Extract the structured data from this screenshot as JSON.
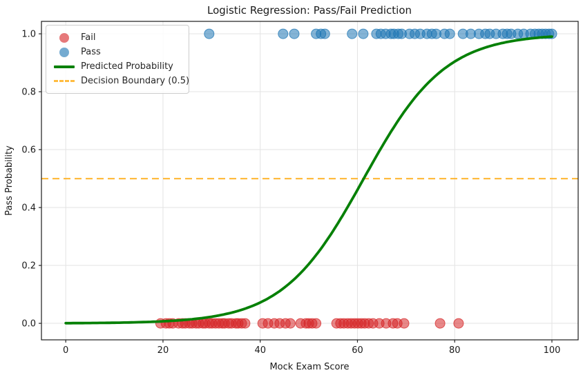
{
  "chart_data": {
    "type": "scatter",
    "title": "Logistic Regression: Pass/Fail Prediction",
    "xlabel": "Mock Exam Score",
    "ylabel": "Pass Probability",
    "xlim": [
      -5,
      105.4
    ],
    "ylim": [
      -0.057,
      1.043
    ],
    "grid": true,
    "legend_position": "upper-left",
    "xticks": [
      {
        "v": 0,
        "label": "0"
      },
      {
        "v": 20,
        "label": "20"
      },
      {
        "v": 40,
        "label": "40"
      },
      {
        "v": 60,
        "label": "60"
      },
      {
        "v": 80,
        "label": "80"
      },
      {
        "v": 100,
        "label": "100"
      }
    ],
    "yticks": [
      {
        "v": 0.0,
        "label": "0.0"
      },
      {
        "v": 0.2,
        "label": "0.2"
      },
      {
        "v": 0.4,
        "label": "0.4"
      },
      {
        "v": 0.6,
        "label": "0.6"
      },
      {
        "v": 0.8,
        "label": "0.8"
      },
      {
        "v": 1.0,
        "label": "1.0"
      }
    ],
    "series": [
      {
        "name": "Fail",
        "type": "scatter",
        "color": "#d62728",
        "opacity": 0.55,
        "marker_radius": 7,
        "y": 0,
        "x": [
          19.5,
          20.6,
          21.3,
          22.0,
          23.2,
          24.0,
          24.6,
          25.4,
          26.0,
          26.8,
          27.4,
          28.2,
          28.7,
          29.5,
          30.1,
          30.8,
          31.5,
          32.2,
          32.7,
          33.5,
          34.1,
          35.0,
          35.5,
          36.2,
          36.9,
          40.5,
          41.6,
          42.9,
          44.0,
          45.2,
          46.2,
          48.3,
          49.4,
          50.0,
          50.7,
          51.5,
          55.7,
          56.5,
          57.2,
          58.0,
          58.7,
          59.4,
          60.1,
          60.8,
          61.5,
          62.3,
          63.2,
          64.5,
          65.9,
          67.3,
          68.2,
          69.6,
          77.0,
          80.8
        ]
      },
      {
        "name": "Pass",
        "type": "scatter",
        "color": "#1f77b4",
        "opacity": 0.55,
        "marker_radius": 7,
        "y": 1,
        "x": [
          29.5,
          44.7,
          47.0,
          51.5,
          52.5,
          53.3,
          58.9,
          61.2,
          63.9,
          64.8,
          65.8,
          66.9,
          67.5,
          68.4,
          69.1,
          70.7,
          71.8,
          72.9,
          74.3,
          75.3,
          76.2,
          77.9,
          79.0,
          81.7,
          83.3,
          85.0,
          86.3,
          87.2,
          88.5,
          89.9,
          90.8,
          91.6,
          93.0,
          94.2,
          95.6,
          96.5,
          97.3,
          98.0,
          98.7,
          99.4,
          100.0
        ]
      },
      {
        "name": "Predicted Probability",
        "type": "sigmoid-line",
        "color": "#068006",
        "line_width": 3.8,
        "k": 0.12,
        "x0": 61.3,
        "x_start": 0,
        "x_end": 100
      },
      {
        "name": "Decision Boundary (0.5)",
        "type": "hline",
        "color": "#ffa500",
        "opacity": 0.75,
        "style": "dashed",
        "line_width": 2.2,
        "y": 0.5
      }
    ]
  },
  "colors": {
    "grid": "#e3e3e3",
    "spine": "#1a1a1a",
    "tick": "#262626",
    "background": "#ffffff"
  }
}
